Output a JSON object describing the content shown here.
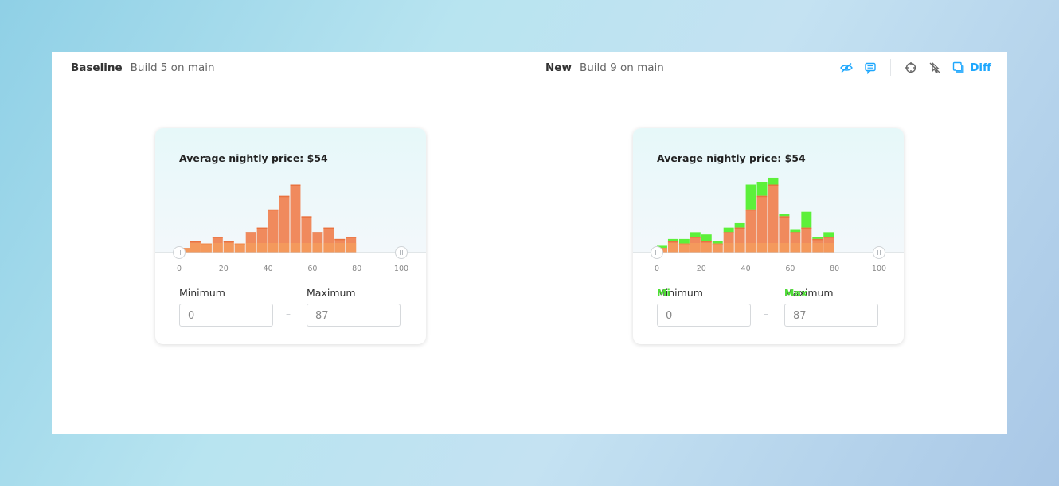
{
  "header": {
    "baseline_label": "Baseline",
    "baseline_build": "Build 5 on main",
    "new_label": "New",
    "new_build": "Build 9 on main",
    "diff_label": "Diff",
    "icons": [
      "eye-off-icon",
      "comments-icon",
      "crosshair-icon",
      "strikethrough-pointer-icon",
      "diff-icon"
    ]
  },
  "colors": {
    "accent": "#1ea7fd",
    "bar": "#f08a5d",
    "bar_dark": "#e9723f",
    "bar_light": "#f7a35c",
    "diff": "#5cf03a"
  },
  "baseline_card": {
    "title": "Average nightly price: $54",
    "min_label": "Minimum",
    "max_label": "Maximum",
    "min_value": "0",
    "max_value": "87",
    "dash": "–"
  },
  "new_card": {
    "title": "Average nightly price: $54",
    "min_label": "Minimum",
    "max_label": "Maximum",
    "min_value": "0",
    "max_value": "87",
    "dash": "–",
    "diff_min_label": "Mi",
    "diff_max_label": "Max"
  },
  "chart_data": [
    {
      "type": "bar",
      "x": [
        2.5,
        7.5,
        12.5,
        17.5,
        22.5,
        27.5,
        32.5,
        37.5,
        42.5,
        47.5,
        52.5,
        57.5,
        62.5,
        67.5,
        72.5,
        77.5,
        82.5,
        87.5,
        92.5,
        97.5
      ],
      "values": [
        2,
        5,
        4,
        7,
        5,
        4,
        9,
        11,
        19,
        25,
        30,
        16,
        9,
        11,
        6,
        7,
        0,
        0,
        0,
        0
      ],
      "xticks": [
        "0",
        "20",
        "40",
        "60",
        "80",
        "100"
      ],
      "xlim": [
        0,
        100
      ],
      "range_min": 0,
      "range_max": 100
    },
    {
      "type": "bar",
      "x": [
        2.5,
        7.5,
        12.5,
        17.5,
        22.5,
        27.5,
        32.5,
        37.5,
        42.5,
        47.5,
        52.5,
        57.5,
        62.5,
        67.5,
        72.5,
        77.5,
        82.5,
        87.5,
        92.5,
        97.5
      ],
      "values": [
        2,
        5,
        4,
        7,
        5,
        4,
        9,
        11,
        19,
        25,
        30,
        16,
        9,
        11,
        6,
        7,
        0,
        0,
        0,
        0
      ],
      "diff_values": [
        1,
        1,
        2,
        2,
        3,
        1,
        2,
        2,
        11,
        6,
        3,
        1,
        1,
        7,
        1,
        2,
        0,
        0,
        0,
        0
      ],
      "xticks": [
        "0",
        "20",
        "40",
        "60",
        "80",
        "100"
      ],
      "xlim": [
        0,
        100
      ],
      "range_min": 0,
      "range_max": 100
    }
  ]
}
